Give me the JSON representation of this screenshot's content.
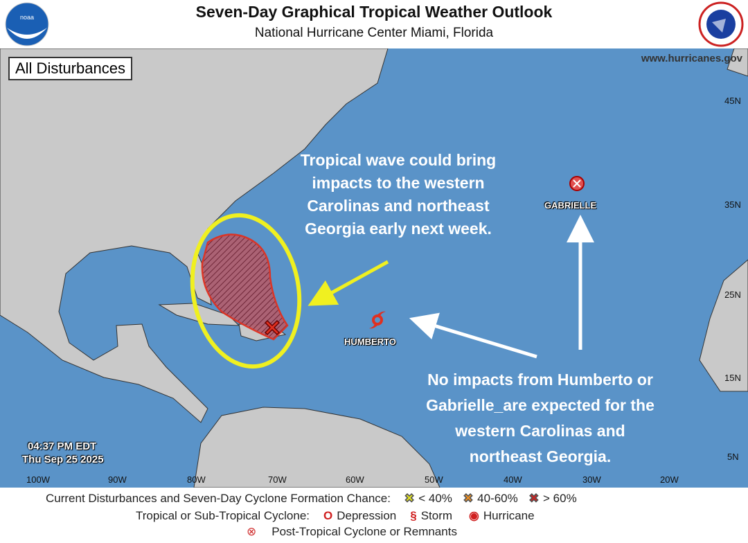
{
  "header": {
    "title": "Seven-Day Graphical Tropical Weather Outlook",
    "subtitle": "National Hurricane Center  Miami, Florida",
    "website": "www.hurricanes.gov",
    "logo_left": "NOAA",
    "logo_right": "National Weather Service"
  },
  "map": {
    "panel_label": "All Disturbances",
    "timestamp_time": "04:37 PM EDT",
    "timestamp_date": "Thu Sep 25 2025",
    "lon_ticks": [
      "100W",
      "90W",
      "80W",
      "70W",
      "60W",
      "50W",
      "40W",
      "30W",
      "20W"
    ],
    "lat_ticks": [
      "45N",
      "35N",
      "25N",
      "15N",
      "5N"
    ],
    "systems": [
      {
        "name": "HUMBERTO",
        "type": "hurricane"
      },
      {
        "name": "GABRIELLE",
        "type": "post-tropical"
      }
    ],
    "disturbance": {
      "chance": "> 60%",
      "color": "#e03020"
    },
    "annotation_wave": "Tropical wave could bring impacts to the western Carolinas and northeast Georgia early next week.",
    "annotation_wave_lines": [
      "Tropical wave could bring",
      "impacts to the western",
      "Carolinas and northeast",
      "Georgia early next week."
    ],
    "annotation_storms_lines": [
      "No impacts from Humberto or",
      "Gabrielle_are expected for the",
      "western Carolinas and",
      "northeast Georgia."
    ]
  },
  "legend": {
    "row1_label": "Current Disturbances and Seven-Day Cyclone Formation Chance:",
    "low": "< 40%",
    "mid": "40-60%",
    "high": "> 60%",
    "row2_label": "Tropical or Sub-Tropical Cyclone:",
    "depression": "Depression",
    "storm": "Storm",
    "hurricane": "Hurricane",
    "row3_label": "Post-Tropical Cyclone or Remnants",
    "colors": {
      "low": "#f0f030",
      "mid": "#f09020",
      "high": "#d02020"
    }
  }
}
